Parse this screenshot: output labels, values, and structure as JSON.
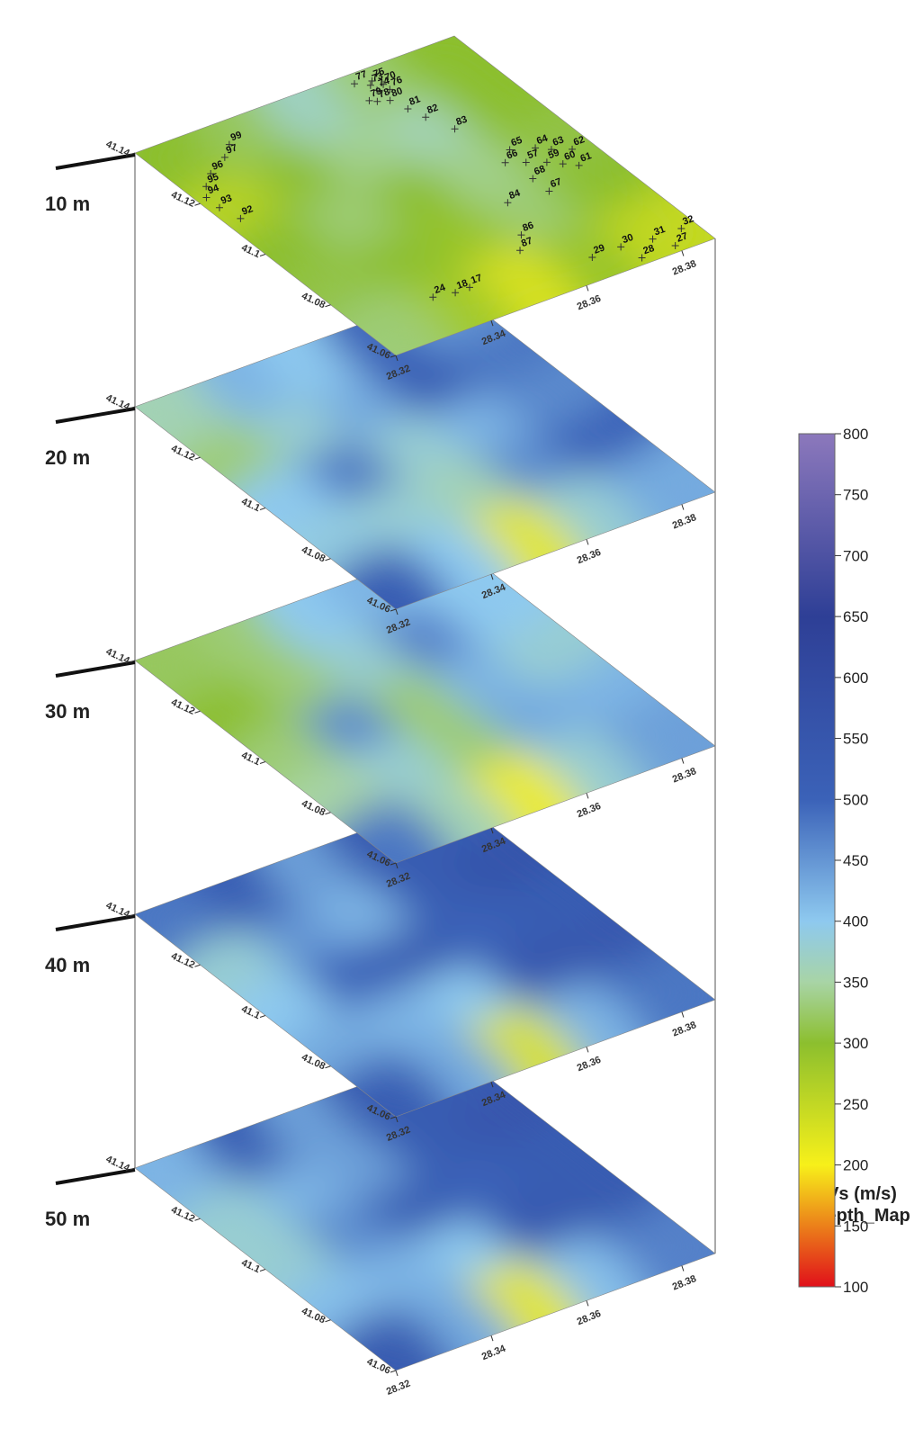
{
  "chart_data": {
    "type": "stacked-heatmap",
    "colorbar_title": "Vs (m/s)",
    "colorbar_subtitle": "Depth_Map",
    "xlim": [
      28.32,
      28.387
    ],
    "ylim": [
      41.06,
      41.14
    ],
    "xticks": [
      28.32,
      28.34,
      28.36,
      28.38
    ],
    "yticks": [
      41.06,
      41.08,
      41.1,
      41.12,
      41.14
    ],
    "clim": [
      100,
      800
    ],
    "cticks": [
      100,
      150,
      200,
      250,
      300,
      350,
      400,
      450,
      500,
      550,
      600,
      650,
      700,
      750,
      800
    ],
    "colorscale": [
      {
        "value": 100,
        "color": "#e0101a"
      },
      {
        "value": 200,
        "color": "#f7f01a"
      },
      {
        "value": 300,
        "color": "#8cbf2e"
      },
      {
        "value": 350,
        "color": "#a8d4a6"
      },
      {
        "value": 400,
        "color": "#8ec9ef"
      },
      {
        "value": 500,
        "color": "#3b62b8"
      },
      {
        "value": 650,
        "color": "#2e3f96"
      },
      {
        "value": 800,
        "color": "#8c78bc"
      }
    ],
    "slices": [
      {
        "label": "10 m",
        "values": [
          [
            300,
            320,
            370,
            330,
            300
          ],
          [
            260,
            300,
            340,
            360,
            300
          ],
          [
            300,
            330,
            300,
            340,
            310
          ],
          [
            310,
            300,
            290,
            330,
            300
          ],
          [
            330,
            280,
            230,
            290,
            250
          ]
        ]
      },
      {
        "label": "20 m",
        "values": [
          [
            360,
            420,
            400,
            500,
            450
          ],
          [
            330,
            380,
            430,
            520,
            480
          ],
          [
            400,
            480,
            380,
            420,
            460
          ],
          [
            390,
            380,
            360,
            460,
            500
          ],
          [
            520,
            400,
            220,
            380,
            430
          ]
        ]
      },
      {
        "label": "30 m",
        "values": [
          [
            320,
            330,
            400,
            420,
            400
          ],
          [
            300,
            330,
            380,
            470,
            400
          ],
          [
            330,
            460,
            330,
            420,
            380
          ],
          [
            350,
            380,
            330,
            430,
            420
          ],
          [
            480,
            360,
            210,
            380,
            440
          ]
        ]
      },
      {
        "label": "40 m",
        "values": [
          [
            480,
            520,
            440,
            530,
            520
          ],
          [
            380,
            450,
            420,
            520,
            560
          ],
          [
            400,
            500,
            530,
            500,
            520
          ],
          [
            430,
            420,
            400,
            550,
            540
          ],
          [
            520,
            430,
            230,
            420,
            480
          ]
        ]
      },
      {
        "label": "50 m",
        "values": [
          [
            420,
            520,
            440,
            530,
            520
          ],
          [
            380,
            420,
            440,
            520,
            550
          ],
          [
            380,
            460,
            520,
            500,
            520
          ],
          [
            410,
            420,
            400,
            540,
            530
          ],
          [
            530,
            430,
            220,
            410,
            470
          ]
        ]
      }
    ],
    "stations": [
      {
        "label": "77",
        "lon": 28.364,
        "lat": 41.137
      },
      {
        "label": "73",
        "lon": 28.366,
        "lat": 41.135
      },
      {
        "label": "75",
        "lon": 28.367,
        "lat": 41.136
      },
      {
        "label": "70",
        "lon": 28.368,
        "lat": 41.134
      },
      {
        "label": "74",
        "lon": 28.366,
        "lat": 41.133
      },
      {
        "label": "76",
        "lon": 28.368,
        "lat": 41.132
      },
      {
        "label": "79",
        "lon": 28.363,
        "lat": 41.131
      },
      {
        "label": "78",
        "lon": 28.364,
        "lat": 41.13
      },
      {
        "label": "80",
        "lon": 28.366,
        "lat": 41.129
      },
      {
        "label": "81",
        "lon": 28.367,
        "lat": 41.125
      },
      {
        "label": "82",
        "lon": 28.368,
        "lat": 41.121
      },
      {
        "label": "83",
        "lon": 28.37,
        "lat": 41.115
      },
      {
        "label": "99",
        "lon": 28.335,
        "lat": 41.133
      },
      {
        "label": "97",
        "lon": 28.332,
        "lat": 41.13
      },
      {
        "label": "96",
        "lon": 28.327,
        "lat": 41.127
      },
      {
        "label": "95",
        "lon": 28.324,
        "lat": 41.124
      },
      {
        "label": "94",
        "lon": 28.322,
        "lat": 41.121
      },
      {
        "label": "93",
        "lon": 28.322,
        "lat": 41.117
      },
      {
        "label": "92",
        "lon": 28.323,
        "lat": 41.112
      },
      {
        "label": "65",
        "lon": 28.374,
        "lat": 41.104
      },
      {
        "label": "64",
        "lon": 28.378,
        "lat": 41.102
      },
      {
        "label": "63",
        "lon": 28.38,
        "lat": 41.1
      },
      {
        "label": "62",
        "lon": 28.383,
        "lat": 41.098
      },
      {
        "label": "66",
        "lon": 28.371,
        "lat": 41.101
      },
      {
        "label": "57",
        "lon": 28.374,
        "lat": 41.099
      },
      {
        "label": "59",
        "lon": 28.377,
        "lat": 41.097
      },
      {
        "label": "60",
        "lon": 28.379,
        "lat": 41.095
      },
      {
        "label": "61",
        "lon": 28.381,
        "lat": 41.093
      },
      {
        "label": "68",
        "lon": 28.372,
        "lat": 41.094
      },
      {
        "label": "67",
        "lon": 28.372,
        "lat": 41.089
      },
      {
        "label": "84",
        "lon": 28.364,
        "lat": 41.09
      },
      {
        "label": "86",
        "lon": 28.36,
        "lat": 41.08
      },
      {
        "label": "87",
        "lon": 28.357,
        "lat": 41.076
      },
      {
        "label": "29",
        "lon": 28.366,
        "lat": 41.067
      },
      {
        "label": "30",
        "lon": 28.372,
        "lat": 41.067
      },
      {
        "label": "31",
        "lon": 28.378,
        "lat": 41.066
      },
      {
        "label": "32",
        "lon": 28.384,
        "lat": 41.066
      },
      {
        "label": "28",
        "lon": 28.373,
        "lat": 41.062
      },
      {
        "label": "27",
        "lon": 28.38,
        "lat": 41.062
      },
      {
        "label": "18",
        "lon": 28.34,
        "lat": 41.071
      },
      {
        "label": "17",
        "lon": 28.343,
        "lat": 41.071
      },
      {
        "label": "24",
        "lon": 28.336,
        "lat": 41.072
      }
    ]
  }
}
